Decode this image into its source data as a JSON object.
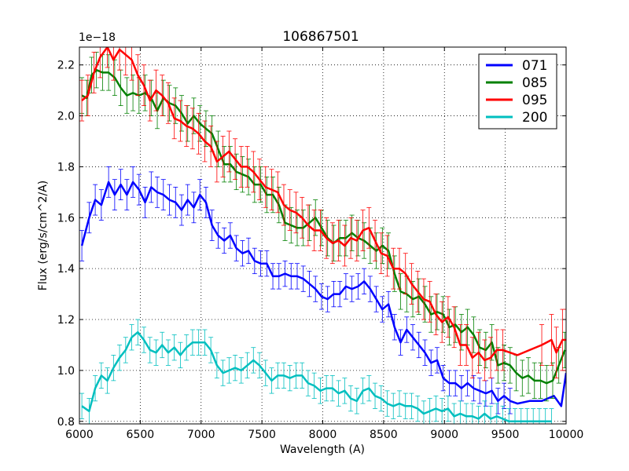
{
  "chart_data": {
    "type": "line",
    "title": "106867501",
    "xlabel": "Wavelength (A)",
    "ylabel": "Flux (erg/s/cm^2/A)",
    "y_scale_label": "1e−18",
    "xlim": [
      6000,
      10000
    ],
    "ylim": [
      0.79,
      2.27
    ],
    "x_ticks": [
      6000,
      6500,
      7000,
      7500,
      8000,
      8500,
      9000,
      9500,
      10000
    ],
    "x_tick_labels": [
      "6000",
      "6500",
      "7000",
      "7500",
      "8000",
      "8500",
      "9000",
      "9500",
      "10000"
    ],
    "y_ticks": [
      0.8,
      1.0,
      1.2,
      1.4,
      1.6,
      1.8,
      2.0,
      2.2
    ],
    "y_tick_labels": [
      "0.8",
      "1.0",
      "1.2",
      "1.4",
      "1.6",
      "1.8",
      "2.0",
      "2.2"
    ],
    "grid": true,
    "legend_position": "top-right",
    "series": [
      {
        "name": "071",
        "color": "#0000ff",
        "x": [
          6020,
          6080,
          6130,
          6180,
          6240,
          6290,
          6340,
          6390,
          6440,
          6490,
          6540,
          6590,
          6640,
          6690,
          6740,
          6790,
          6840,
          6890,
          6940,
          6990,
          7040,
          7090,
          7140,
          7190,
          7240,
          7290,
          7340,
          7390,
          7440,
          7490,
          7540,
          7590,
          7640,
          7690,
          7740,
          7790,
          7840,
          7890,
          7940,
          7990,
          8040,
          8090,
          8140,
          8190,
          8240,
          8290,
          8340,
          8390,
          8440,
          8490,
          8540,
          8590,
          8640,
          8690,
          8740,
          8790,
          8840,
          8890,
          8940,
          8990,
          9040,
          9090,
          9140,
          9190,
          9240,
          9290,
          9340,
          9390,
          9440,
          9490,
          9540,
          9600,
          9700,
          9800,
          9900,
          9960,
          10000
        ],
        "y": [
          1.49,
          1.6,
          1.67,
          1.65,
          1.74,
          1.69,
          1.73,
          1.69,
          1.74,
          1.71,
          1.66,
          1.72,
          1.7,
          1.69,
          1.67,
          1.66,
          1.63,
          1.67,
          1.64,
          1.69,
          1.66,
          1.57,
          1.53,
          1.51,
          1.53,
          1.48,
          1.46,
          1.47,
          1.43,
          1.42,
          1.42,
          1.37,
          1.37,
          1.38,
          1.37,
          1.37,
          1.36,
          1.34,
          1.32,
          1.29,
          1.28,
          1.3,
          1.3,
          1.33,
          1.32,
          1.33,
          1.35,
          1.32,
          1.28,
          1.24,
          1.26,
          1.17,
          1.11,
          1.16,
          1.13,
          1.1,
          1.07,
          1.03,
          1.04,
          0.97,
          0.95,
          0.95,
          0.93,
          0.95,
          0.93,
          0.92,
          0.91,
          0.92,
          0.88,
          0.9,
          0.88,
          0.87,
          0.88,
          0.88,
          0.9,
          0.86,
          0.99
        ],
        "err": [
          0.06,
          0.06,
          0.06,
          0.06,
          0.06,
          0.06,
          0.06,
          0.06,
          0.06,
          0.06,
          0.06,
          0.06,
          0.06,
          0.06,
          0.06,
          0.06,
          0.06,
          0.06,
          0.06,
          0.06,
          0.06,
          0.06,
          0.05,
          0.05,
          0.05,
          0.05,
          0.05,
          0.05,
          0.05,
          0.05,
          0.05,
          0.05,
          0.05,
          0.05,
          0.05,
          0.05,
          0.05,
          0.05,
          0.05,
          0.05,
          0.05,
          0.05,
          0.05,
          0.05,
          0.05,
          0.05,
          0.05,
          0.05,
          0.05,
          0.05,
          0.05,
          0.05,
          0.05,
          0.05,
          0.05,
          0.05,
          0.05,
          0.05,
          0.05,
          0.05,
          0.05,
          0.05,
          0.05,
          0.05,
          0.05,
          0.05,
          0.05,
          0.05,
          0.05,
          0.05,
          0.05,
          0.0,
          0.0,
          0.0,
          0.0,
          0.0,
          0.0
        ]
      },
      {
        "name": "085",
        "color": "#008000",
        "x": [
          6020,
          6060,
          6100,
          6140,
          6190,
          6240,
          6290,
          6340,
          6390,
          6440,
          6490,
          6540,
          6590,
          6640,
          6690,
          6740,
          6790,
          6840,
          6890,
          6940,
          6990,
          7040,
          7090,
          7140,
          7190,
          7240,
          7290,
          7340,
          7390,
          7440,
          7490,
          7540,
          7590,
          7640,
          7690,
          7740,
          7790,
          7840,
          7890,
          7940,
          7990,
          8040,
          8090,
          8140,
          8190,
          8240,
          8290,
          8340,
          8390,
          8440,
          8490,
          8540,
          8590,
          8640,
          8690,
          8740,
          8790,
          8840,
          8890,
          8940,
          8990,
          9040,
          9090,
          9140,
          9190,
          9240,
          9290,
          9340,
          9390,
          9440,
          9490,
          9540,
          9590,
          9640,
          9690,
          9740,
          9790,
          9840,
          9890,
          9940,
          9990
        ],
        "y": [
          2.08,
          2.07,
          2.16,
          2.18,
          2.17,
          2.17,
          2.15,
          2.11,
          2.08,
          2.09,
          2.08,
          2.09,
          2.07,
          2.02,
          2.07,
          2.05,
          2.04,
          2.01,
          1.97,
          2.0,
          1.97,
          1.95,
          1.93,
          1.87,
          1.81,
          1.81,
          1.78,
          1.77,
          1.76,
          1.73,
          1.73,
          1.69,
          1.69,
          1.65,
          1.58,
          1.57,
          1.56,
          1.56,
          1.58,
          1.6,
          1.56,
          1.52,
          1.5,
          1.52,
          1.52,
          1.54,
          1.52,
          1.51,
          1.49,
          1.47,
          1.49,
          1.47,
          1.38,
          1.31,
          1.3,
          1.28,
          1.29,
          1.26,
          1.22,
          1.23,
          1.22,
          1.17,
          1.18,
          1.15,
          1.17,
          1.14,
          1.09,
          1.08,
          1.11,
          1.02,
          1.03,
          1.02,
          0.99,
          0.97,
          0.98,
          0.96,
          0.96,
          0.95,
          0.96,
          1.02,
          1.08
        ],
        "err": [
          0.07,
          0.07,
          0.07,
          0.07,
          0.07,
          0.07,
          0.07,
          0.07,
          0.07,
          0.07,
          0.07,
          0.07,
          0.07,
          0.07,
          0.07,
          0.07,
          0.07,
          0.07,
          0.07,
          0.07,
          0.07,
          0.07,
          0.07,
          0.07,
          0.07,
          0.07,
          0.07,
          0.07,
          0.07,
          0.07,
          0.07,
          0.07,
          0.07,
          0.07,
          0.07,
          0.07,
          0.07,
          0.07,
          0.07,
          0.07,
          0.07,
          0.07,
          0.07,
          0.07,
          0.07,
          0.07,
          0.07,
          0.07,
          0.07,
          0.07,
          0.07,
          0.07,
          0.07,
          0.07,
          0.07,
          0.07,
          0.07,
          0.07,
          0.07,
          0.07,
          0.07,
          0.07,
          0.07,
          0.07,
          0.07,
          0.07,
          0.07,
          0.07,
          0.07,
          0.07,
          0.07,
          0.07,
          0.07,
          0.07,
          0.07,
          0.07,
          0.07,
          0.07,
          0.07,
          0.07,
          0.07
        ]
      },
      {
        "name": "095",
        "color": "#ff0000",
        "x": [
          6020,
          6070,
          6120,
          6170,
          6230,
          6280,
          6330,
          6380,
          6430,
          6480,
          6530,
          6580,
          6630,
          6680,
          6730,
          6780,
          6830,
          6880,
          6930,
          6980,
          7030,
          7080,
          7130,
          7180,
          7230,
          7280,
          7330,
          7380,
          7430,
          7480,
          7530,
          7580,
          7630,
          7680,
          7730,
          7780,
          7830,
          7880,
          7930,
          7980,
          8030,
          8080,
          8130,
          8180,
          8230,
          8280,
          8330,
          8380,
          8430,
          8480,
          8530,
          8580,
          8630,
          8680,
          8730,
          8780,
          8830,
          8880,
          8930,
          8980,
          9030,
          9080,
          9130,
          9180,
          9230,
          9280,
          9330,
          9380,
          9430,
          9480,
          9540,
          9600,
          9700,
          9800,
          9880,
          9920,
          9970,
          10000
        ],
        "y": [
          2.06,
          2.08,
          2.17,
          2.23,
          2.27,
          2.22,
          2.26,
          2.24,
          2.22,
          2.16,
          2.12,
          2.06,
          2.1,
          2.08,
          2.05,
          1.99,
          1.98,
          1.96,
          1.95,
          1.93,
          1.9,
          1.88,
          1.82,
          1.84,
          1.86,
          1.83,
          1.8,
          1.8,
          1.78,
          1.75,
          1.72,
          1.71,
          1.7,
          1.65,
          1.63,
          1.62,
          1.6,
          1.57,
          1.55,
          1.55,
          1.52,
          1.5,
          1.51,
          1.49,
          1.52,
          1.51,
          1.55,
          1.56,
          1.51,
          1.46,
          1.45,
          1.4,
          1.4,
          1.38,
          1.34,
          1.31,
          1.28,
          1.27,
          1.22,
          1.19,
          1.21,
          1.17,
          1.1,
          1.1,
          1.05,
          1.07,
          1.04,
          1.05,
          1.08,
          1.08,
          1.07,
          1.06,
          1.08,
          1.1,
          1.12,
          1.07,
          1.12,
          1.12
        ],
        "err": [
          0.08,
          0.08,
          0.08,
          0.08,
          0.08,
          0.08,
          0.08,
          0.08,
          0.08,
          0.08,
          0.08,
          0.08,
          0.08,
          0.08,
          0.08,
          0.08,
          0.08,
          0.08,
          0.08,
          0.08,
          0.08,
          0.08,
          0.08,
          0.08,
          0.08,
          0.08,
          0.08,
          0.08,
          0.08,
          0.08,
          0.08,
          0.08,
          0.08,
          0.08,
          0.08,
          0.08,
          0.08,
          0.08,
          0.08,
          0.08,
          0.08,
          0.08,
          0.08,
          0.08,
          0.08,
          0.08,
          0.08,
          0.08,
          0.08,
          0.08,
          0.08,
          0.08,
          0.08,
          0.08,
          0.08,
          0.08,
          0.08,
          0.08,
          0.08,
          0.08,
          0.08,
          0.08,
          0.08,
          0.08,
          0.08,
          0.08,
          0.08,
          0.08,
          0.08,
          0.08,
          0.0,
          0.0,
          0.0,
          0.08,
          0.1,
          0.1,
          0.12,
          0.12
        ]
      },
      {
        "name": "200",
        "color": "#00bfbf",
        "x": [
          6020,
          6080,
          6130,
          6180,
          6230,
          6280,
          6330,
          6380,
          6430,
          6480,
          6530,
          6580,
          6630,
          6680,
          6730,
          6780,
          6830,
          6880,
          6930,
          6980,
          7030,
          7080,
          7130,
          7180,
          7230,
          7280,
          7330,
          7380,
          7430,
          7480,
          7530,
          7580,
          7630,
          7680,
          7730,
          7780,
          7830,
          7880,
          7930,
          7980,
          8030,
          8080,
          8130,
          8180,
          8230,
          8280,
          8330,
          8380,
          8430,
          8480,
          8530,
          8580,
          8630,
          8680,
          8730,
          8780,
          8830,
          8880,
          8930,
          8980,
          9030,
          9080,
          9130,
          9180,
          9230,
          9280,
          9330,
          9380,
          9430,
          9480,
          9530,
          9580,
          9630,
          9680,
          9730,
          9780,
          9830,
          9880
        ],
        "y": [
          0.86,
          0.84,
          0.93,
          0.98,
          0.96,
          1.01,
          1.05,
          1.08,
          1.13,
          1.15,
          1.12,
          1.08,
          1.07,
          1.1,
          1.07,
          1.09,
          1.06,
          1.09,
          1.11,
          1.11,
          1.11,
          1.08,
          1.02,
          0.99,
          1.0,
          1.01,
          1.0,
          1.02,
          1.04,
          1.02,
          0.99,
          0.96,
          0.98,
          0.98,
          0.97,
          0.98,
          0.98,
          0.95,
          0.94,
          0.92,
          0.93,
          0.93,
          0.91,
          0.92,
          0.89,
          0.88,
          0.92,
          0.93,
          0.9,
          0.89,
          0.87,
          0.86,
          0.87,
          0.86,
          0.86,
          0.85,
          0.83,
          0.84,
          0.85,
          0.84,
          0.85,
          0.82,
          0.83,
          0.82,
          0.82,
          0.81,
          0.83,
          0.81,
          0.82,
          0.81,
          0.8,
          0.8,
          0.8,
          0.8,
          0.8,
          0.8,
          0.8,
          0.8
        ],
        "err": [
          0.05,
          0.05,
          0.05,
          0.05,
          0.05,
          0.05,
          0.05,
          0.05,
          0.05,
          0.05,
          0.05,
          0.05,
          0.05,
          0.05,
          0.05,
          0.05,
          0.05,
          0.05,
          0.05,
          0.05,
          0.05,
          0.05,
          0.05,
          0.05,
          0.05,
          0.05,
          0.05,
          0.05,
          0.05,
          0.05,
          0.05,
          0.05,
          0.05,
          0.05,
          0.05,
          0.05,
          0.05,
          0.05,
          0.05,
          0.05,
          0.05,
          0.05,
          0.05,
          0.05,
          0.05,
          0.05,
          0.05,
          0.05,
          0.05,
          0.05,
          0.05,
          0.05,
          0.05,
          0.05,
          0.05,
          0.05,
          0.05,
          0.05,
          0.05,
          0.05,
          0.05,
          0.05,
          0.05,
          0.05,
          0.05,
          0.05,
          0.05,
          0.05,
          0.05,
          0.05,
          0.05,
          0.05,
          0.05,
          0.05,
          0.05,
          0.05,
          0.05,
          0.05
        ]
      }
    ]
  }
}
